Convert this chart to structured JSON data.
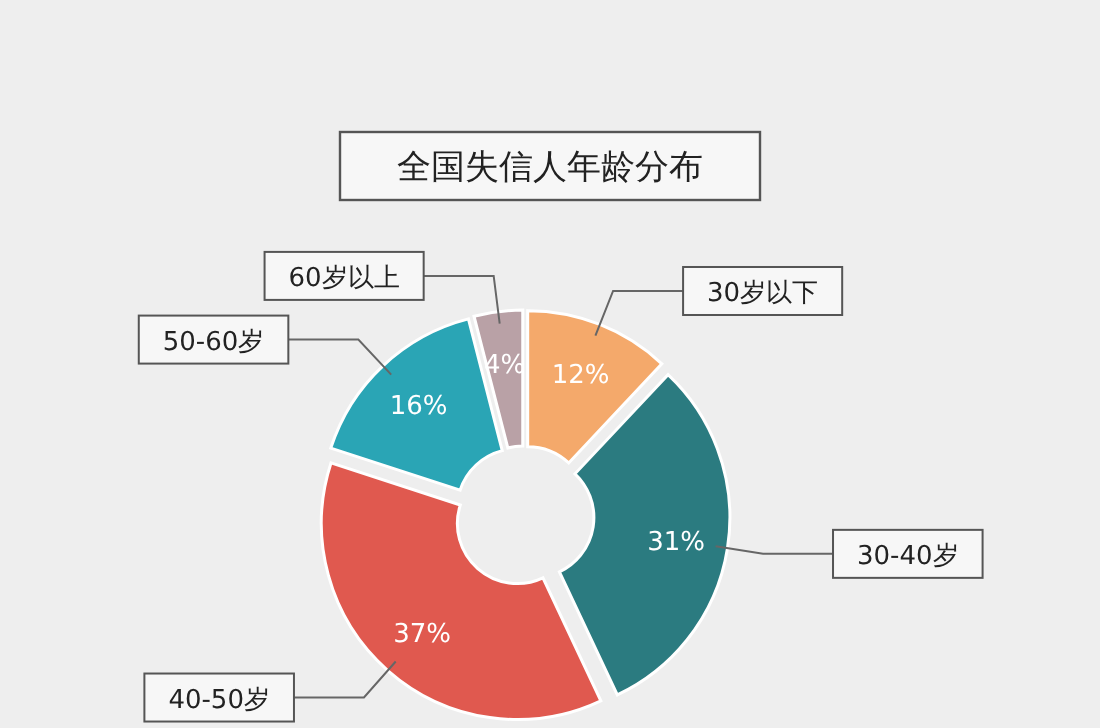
{
  "chart_data": {
    "type": "donut",
    "title": "全国失信人年龄分布",
    "categories": [
      "30岁以下",
      "30-40岁",
      "40-50岁",
      "50-60岁",
      "60岁以上"
    ],
    "values": [
      12,
      31,
      37,
      16,
      4
    ],
    "value_labels": [
      "12%",
      "31%",
      "37%",
      "16%",
      "4%"
    ],
    "colors": [
      "#f4a96b",
      "#2b7b80",
      "#e0594f",
      "#2aa5b5",
      "#b9a1a6"
    ]
  }
}
